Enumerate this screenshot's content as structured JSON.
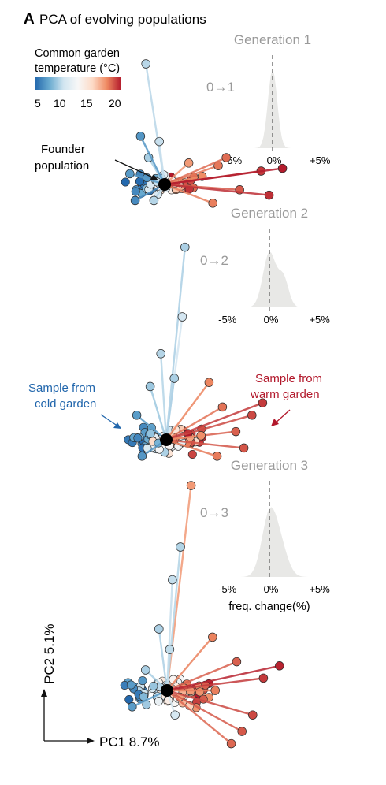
{
  "figure": {
    "panel_letter": "A",
    "title": "PCA of evolving populations",
    "colorbar": {
      "title_line1": "Common garden",
      "title_line2": "temperature (°C)",
      "ticks": [
        "5",
        "10",
        "15",
        "20"
      ],
      "range": [
        5,
        20
      ],
      "colors": [
        "#2166ac",
        "#67a9cf",
        "#d1e5f0",
        "#f7f7f7",
        "#fddbc7",
        "#ef8a62",
        "#b2182b"
      ]
    },
    "annotations": {
      "founder_line1": "Founder",
      "founder_line2": "population",
      "cold_line1": "Sample from",
      "cold_line2": "cold garden",
      "warm_line1": "Sample from",
      "warm_line2": "warm garden"
    },
    "axes": {
      "pc1_label": "PC1 8.7%",
      "pc2_label": "PC2 5.1%"
    },
    "colors": {
      "cold": "#2166ac",
      "warm": "#b2182b",
      "neutral": "#aaaaaa",
      "founder": "#000000"
    }
  },
  "chart_data": [
    {
      "type": "scatter",
      "title": "Generation 1",
      "xlabel": "PC1 8.7%",
      "ylabel": "PC2 5.1%",
      "series": [
        {
          "x": [
            -0.6,
            -0.7,
            -0.9,
            -1.3,
            -0.4,
            0.9,
            1.4,
            2.0,
            2.8,
            3.6,
            4.4,
            3.9,
            2.3,
            1.8,
            -1.1,
            -0.2
          ],
          "y": [
            1.0,
            4.5,
            1.8,
            0.4,
            -0.6,
            0.8,
            0.3,
            0.7,
            -0.2,
            0.5,
            0.6,
            -0.4,
            1.0,
            -0.7,
            -0.6,
            1.6
          ]
        }
      ],
      "inset": {
        "type": "area",
        "title": "0→1",
        "xlabel": "",
        "x_ticks": [
          "-5%",
          "0%",
          "+5%"
        ]
      }
    },
    {
      "type": "scatter",
      "title": "Generation 2",
      "xlabel": "PC1 8.7%",
      "ylabel": "PC2 5.1%",
      "series": [
        {
          "x": [
            0.7,
            0.6,
            -0.2,
            -0.6,
            -1.1,
            0.3,
            1.6,
            2.1,
            2.6,
            3.2,
            1.9,
            2.9,
            1.3,
            3.6,
            -0.9
          ],
          "y": [
            4.7,
            3.0,
            2.1,
            1.3,
            0.6,
            1.5,
            1.4,
            0.8,
            0.2,
            0.6,
            -0.4,
            -0.2,
            0.1,
            0.9,
            -0.4
          ]
        }
      ],
      "inset": {
        "type": "area",
        "title": "0→2",
        "xlabel": "",
        "x_ticks": [
          "-5%",
          "0%",
          "+5%"
        ]
      }
    },
    {
      "type": "scatter",
      "title": "Generation 3",
      "xlabel": "PC1 8.7%",
      "ylabel": "PC2 5.1%",
      "series": [
        {
          "x": [
            0.9,
            0.5,
            0.2,
            -0.3,
            0.1,
            -0.8,
            1.7,
            2.6,
            3.6,
            4.2,
            3.2,
            2.8,
            2.4,
            1.8,
            -1.3,
            0.3
          ],
          "y": [
            5.0,
            3.5,
            2.7,
            1.5,
            1.0,
            0.5,
            1.3,
            0.7,
            0.3,
            0.6,
            -0.6,
            -1.0,
            -1.3,
            0.0,
            -0.4,
            -0.6
          ]
        }
      ],
      "inset": {
        "type": "area",
        "title": "0→3",
        "xlabel": "freq. change(%)",
        "x_ticks": [
          "-5%",
          "0%",
          "+5%"
        ]
      }
    }
  ]
}
